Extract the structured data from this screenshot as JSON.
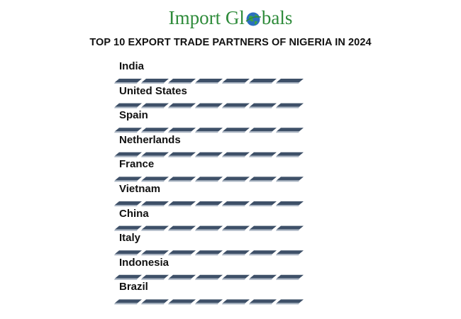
{
  "logo": [
    "Import Gl",
    "bals"
  ],
  "title": "TOP 10 EXPORT TRADE PARTNERS OF NIGERIA IN 2024",
  "items": [
    "India",
    "United States",
    "Spain",
    "Netherlands",
    "France",
    "Vietnam",
    "China",
    "Italy",
    "Indonesia",
    "Brazil"
  ]
}
